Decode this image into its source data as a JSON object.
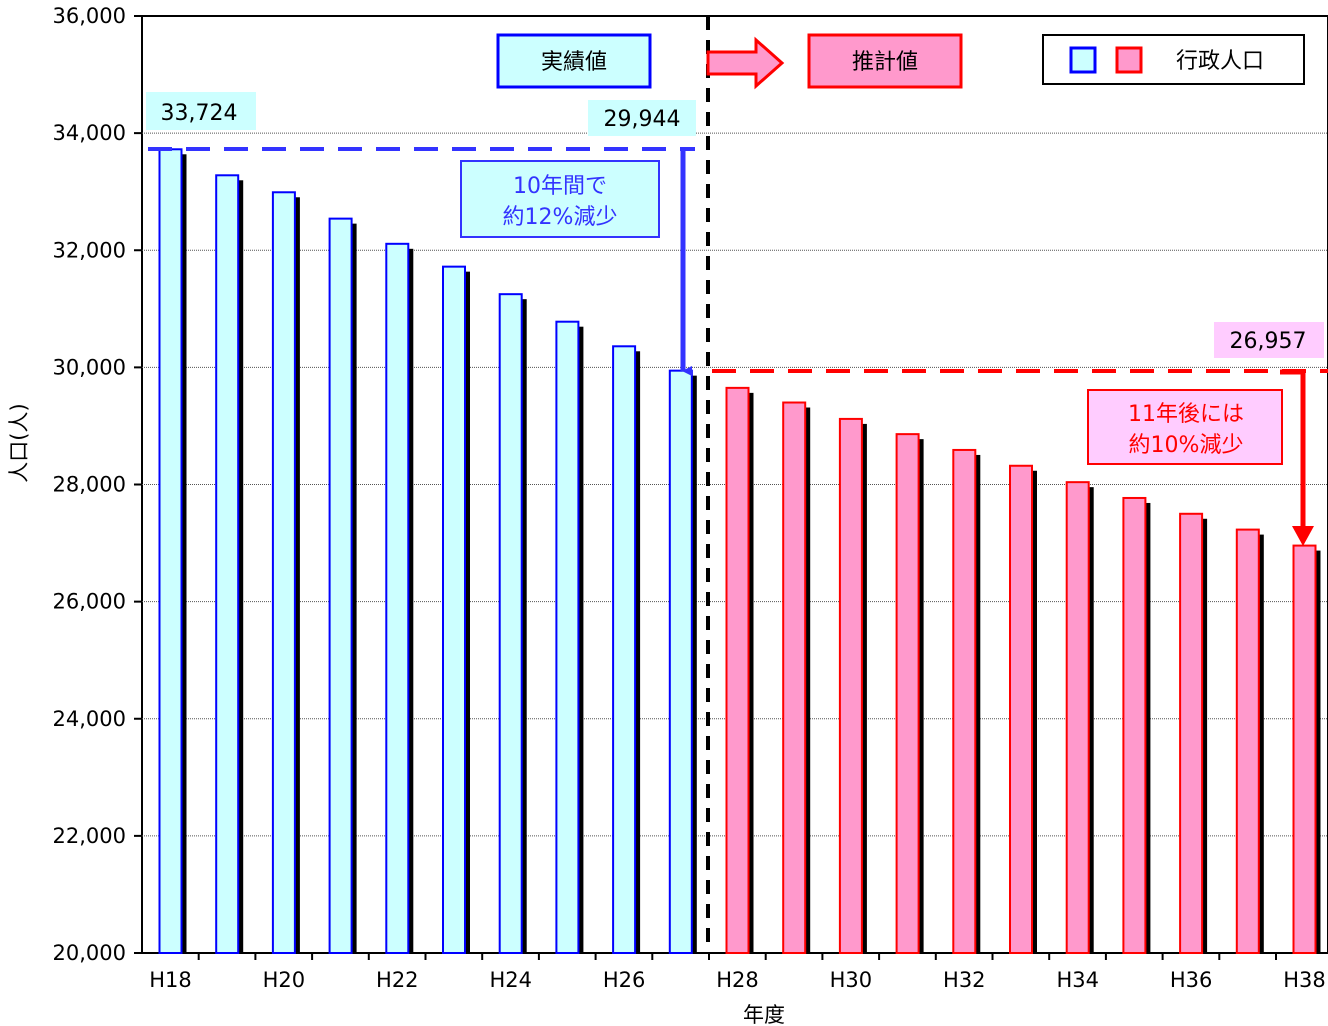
{
  "chart_data": {
    "type": "bar",
    "xlabel": "年度",
    "ylabel": "人口(人)",
    "ylim": [
      20000,
      36000
    ],
    "yticks": [
      "20,000",
      "22,000",
      "24,000",
      "26,000",
      "28,000",
      "30,000",
      "32,000",
      "34,000",
      "36,000"
    ],
    "y_tick_values": [
      20000,
      22000,
      24000,
      26000,
      28000,
      30000,
      32000,
      34000,
      36000
    ],
    "categories": [
      "H18",
      "H19",
      "H20",
      "H21",
      "H22",
      "H23",
      "H24",
      "H25",
      "H26",
      "H27",
      "H28",
      "H29",
      "H30",
      "H31",
      "H32",
      "H33",
      "H34",
      "H35",
      "H36",
      "H37",
      "H38"
    ],
    "x_tick_labels": [
      "H18",
      "",
      "H20",
      "",
      "H22",
      "",
      "H24",
      "",
      "H26",
      "",
      "H28",
      "",
      "H30",
      "",
      "H32",
      "",
      "H34",
      "",
      "H36",
      "",
      "H38"
    ],
    "series": [
      {
        "name": "行政人口",
        "values": [
          33724,
          33280,
          32990,
          32540,
          32110,
          31720,
          31250,
          30780,
          30360,
          29944,
          29650,
          29400,
          29120,
          28860,
          28590,
          28320,
          28040,
          27770,
          27500,
          27230,
          26957
        ]
      }
    ],
    "actual_count": 10,
    "colors": {
      "actual_fill": "#ccffff",
      "actual_border": "#0000ff",
      "forecast_fill": "#ff99cc",
      "forecast_border": "#ff0000",
      "shadow": "#000000",
      "blue_annotation": "#3333ff",
      "red_annotation": "#ff0000"
    },
    "grid": "horizontal",
    "legend_position": "top-right",
    "legend_label": "行政人口",
    "annotations": {
      "actual_label": "実績値",
      "forecast_label": "推計値",
      "start_value_label": "33,724",
      "end_actual_label": "29,944",
      "end_forecast_label": "26,957",
      "decrease_actual_line1": "10年間で",
      "decrease_actual_line2": "約12%減少",
      "decrease_forecast_line1": "11年後には",
      "decrease_forecast_line2": "約10%減少"
    }
  }
}
